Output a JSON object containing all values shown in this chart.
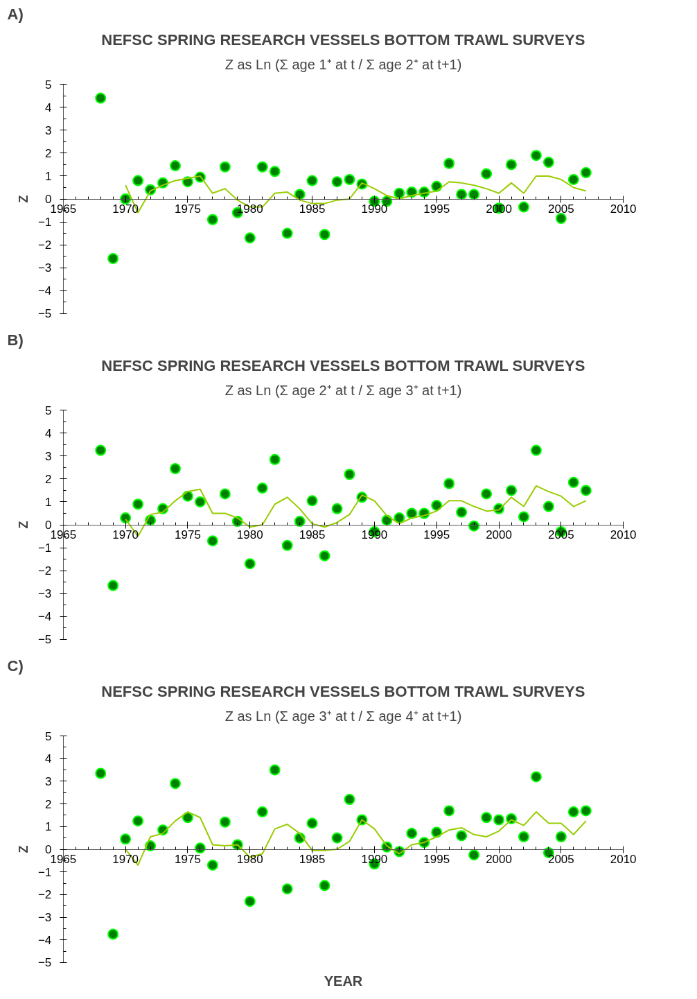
{
  "chart_data": [
    {
      "type": "scatter",
      "title": "NEFSC SPRING RESEARCH VESSELS BOTTOM TRAWL SURVEYS",
      "subtitle": "Z as Ln (Σ age 1⁺ at t / Σ age 2⁺ at t+1)",
      "ylabel": "Z",
      "annotations": [
        "A)"
      ],
      "xlim": [
        1965,
        2010
      ],
      "xticks": [
        1965,
        1970,
        1975,
        1980,
        1985,
        1990,
        1995,
        2000,
        2005,
        2010
      ],
      "ylim": [
        -5,
        5
      ],
      "yticks": [
        -5,
        -4,
        -3,
        -2,
        -1,
        0,
        1,
        2,
        3,
        4,
        5
      ],
      "grid": false,
      "marker": "circle",
      "series": [
        {
          "color": "#008000",
          "x": [
            1968,
            1969,
            1970,
            1971,
            1972,
            1973,
            1974,
            1975,
            1976,
            1977,
            1978,
            1979,
            1980,
            1981,
            1982,
            1983,
            1984,
            1985,
            1986,
            1987,
            1988,
            1989,
            1990,
            1991,
            1992,
            1993,
            1994,
            1995,
            1996,
            1997,
            1998,
            1999,
            2000,
            2001,
            2002,
            2003,
            2004,
            2005,
            2006,
            2007
          ],
          "values": [
            4.4,
            -2.6,
            0.0,
            0.8,
            0.4,
            0.7,
            1.45,
            0.75,
            0.95,
            -0.9,
            1.4,
            -0.6,
            -1.7,
            1.4,
            1.2,
            -1.5,
            0.2,
            0.8,
            -1.55,
            0.75,
            0.85,
            0.65,
            -0.1,
            -0.1,
            0.25,
            0.3,
            0.3,
            0.55,
            1.55,
            0.2,
            0.2,
            1.1,
            -0.4,
            1.5,
            -0.35,
            1.9,
            1.6,
            -0.85,
            0.85,
            1.15
          ]
        },
        {
          "type": "line",
          "marker": "none",
          "color": "#99cc00",
          "x": [
            1970,
            1971,
            1972,
            1973,
            1974,
            1975,
            1976,
            1977,
            1978,
            1979,
            1980,
            1981,
            1982,
            1983,
            1984,
            1985,
            1986,
            1987,
            1988,
            1989,
            1990,
            1991,
            1992,
            1993,
            1994,
            1995,
            1996,
            1997,
            1998,
            1999,
            2000,
            2001,
            2002,
            2003,
            2004,
            2005,
            2006,
            2007
          ],
          "values": [
            0.6,
            -0.6,
            0.35,
            0.6,
            0.8,
            0.9,
            1.0,
            0.25,
            0.45,
            -0.05,
            -0.35,
            -0.35,
            0.25,
            0.3,
            -0.05,
            -0.2,
            -0.2,
            -0.05,
            0.0,
            0.7,
            0.45,
            0.15,
            0.0,
            0.15,
            0.25,
            0.35,
            0.75,
            0.7,
            0.6,
            0.45,
            0.25,
            0.7,
            0.25,
            1.0,
            1.0,
            0.85,
            0.5,
            0.35
          ]
        }
      ]
    },
    {
      "type": "scatter",
      "title": "NEFSC SPRING RESEARCH VESSELS BOTTOM TRAWL SURVEYS",
      "subtitle": "Z as Ln (Σ age 2⁺ at t / Σ age 3⁺ at t+1)",
      "ylabel": "Z",
      "annotations": [
        "B)"
      ],
      "xlim": [
        1965,
        2010
      ],
      "xticks": [
        1965,
        1970,
        1975,
        1980,
        1985,
        1990,
        1995,
        2000,
        2005,
        2010
      ],
      "ylim": [
        -5,
        5
      ],
      "yticks": [
        -5,
        -4,
        -3,
        -2,
        -1,
        0,
        1,
        2,
        3,
        4,
        5
      ],
      "grid": false,
      "marker": "circle",
      "series": [
        {
          "color": "#008000",
          "x": [
            1968,
            1969,
            1970,
            1971,
            1972,
            1973,
            1974,
            1975,
            1976,
            1977,
            1978,
            1979,
            1980,
            1981,
            1982,
            1983,
            1984,
            1985,
            1986,
            1987,
            1988,
            1989,
            1990,
            1991,
            1992,
            1993,
            1994,
            1995,
            1996,
            1997,
            1998,
            1999,
            2000,
            2001,
            2002,
            2003,
            2004,
            2005,
            2006,
            2007
          ],
          "values": [
            3.25,
            -2.65,
            0.3,
            0.9,
            0.2,
            0.7,
            2.45,
            1.25,
            1.0,
            -0.7,
            1.35,
            0.15,
            -1.7,
            1.6,
            2.85,
            -0.9,
            0.15,
            1.05,
            -1.35,
            0.7,
            2.2,
            1.2,
            -0.3,
            0.2,
            0.3,
            0.5,
            0.5,
            0.85,
            1.8,
            0.55,
            -0.05,
            1.35,
            0.7,
            1.5,
            0.35,
            3.25,
            0.8,
            -0.3,
            1.85,
            1.5
          ]
        },
        {
          "type": "line",
          "marker": "none",
          "color": "#99cc00",
          "x": [
            1970,
            1971,
            1972,
            1973,
            1974,
            1975,
            1976,
            1977,
            1978,
            1979,
            1980,
            1981,
            1982,
            1983,
            1984,
            1985,
            1986,
            1987,
            1988,
            1989,
            1990,
            1991,
            1992,
            1993,
            1994,
            1995,
            1996,
            1997,
            1998,
            1999,
            2000,
            2001,
            2002,
            2003,
            2004,
            2005,
            2006,
            2007
          ],
          "values": [
            0.25,
            -0.5,
            0.45,
            0.55,
            1.05,
            1.45,
            1.55,
            0.5,
            0.5,
            0.3,
            -0.1,
            0.0,
            0.9,
            1.2,
            0.7,
            0.05,
            -0.1,
            0.1,
            0.45,
            1.3,
            1.05,
            0.4,
            0.05,
            0.3,
            0.4,
            0.6,
            1.05,
            1.05,
            0.8,
            0.6,
            0.65,
            1.2,
            0.8,
            1.7,
            1.45,
            1.25,
            0.8,
            1.05
          ]
        }
      ]
    },
    {
      "type": "scatter",
      "title": "NEFSC SPRING RESEARCH VESSELS BOTTOM TRAWL SURVEYS",
      "subtitle": "Z as Ln (Σ age 3⁺ at t / Σ age 4⁺ at t+1)",
      "xlabel": "YEAR",
      "ylabel": "Z",
      "annotations": [
        "C)"
      ],
      "xlim": [
        1965,
        2010
      ],
      "xticks": [
        1965,
        1970,
        1975,
        1980,
        1985,
        1990,
        1995,
        2000,
        2005,
        2010
      ],
      "ylim": [
        -5,
        5
      ],
      "yticks": [
        -5,
        -4,
        -3,
        -2,
        -1,
        0,
        1,
        2,
        3,
        4,
        5
      ],
      "grid": false,
      "marker": "circle",
      "series": [
        {
          "color": "#008000",
          "x": [
            1968,
            1969,
            1970,
            1971,
            1972,
            1973,
            1974,
            1975,
            1976,
            1977,
            1978,
            1979,
            1980,
            1981,
            1982,
            1983,
            1984,
            1985,
            1986,
            1987,
            1988,
            1989,
            1990,
            1991,
            1992,
            1993,
            1994,
            1995,
            1996,
            1997,
            1998,
            1999,
            2000,
            2001,
            2002,
            2003,
            2004,
            2005,
            2006,
            2007
          ],
          "values": [
            3.35,
            -3.75,
            0.45,
            1.25,
            0.15,
            0.85,
            2.9,
            1.4,
            0.05,
            -0.7,
            1.2,
            0.2,
            -2.3,
            1.65,
            3.5,
            -1.75,
            0.5,
            1.15,
            -1.6,
            0.5,
            2.2,
            1.3,
            -0.65,
            0.1,
            -0.1,
            0.7,
            0.3,
            0.75,
            1.7,
            0.6,
            -0.25,
            1.4,
            1.3,
            1.35,
            0.55,
            3.2,
            -0.15,
            0.55,
            1.65,
            1.7
          ]
        },
        {
          "type": "line",
          "marker": "none",
          "color": "#99cc00",
          "x": [
            1970,
            1971,
            1972,
            1973,
            1974,
            1975,
            1976,
            1977,
            1978,
            1979,
            1980,
            1981,
            1982,
            1983,
            1984,
            1985,
            1986,
            1987,
            1988,
            1989,
            1990,
            1991,
            1992,
            1993,
            1994,
            1995,
            1996,
            1997,
            1998,
            1999,
            2000,
            2001,
            2002,
            2003,
            2004,
            2005,
            2006,
            2007
          ],
          "values": [
            0.0,
            -0.7,
            0.55,
            0.7,
            1.25,
            1.65,
            1.4,
            0.2,
            0.15,
            0.2,
            -0.35,
            -0.2,
            0.9,
            1.1,
            0.7,
            -0.05,
            -0.05,
            0.0,
            0.35,
            1.3,
            0.9,
            0.15,
            -0.2,
            0.2,
            0.3,
            0.55,
            0.85,
            0.95,
            0.65,
            0.55,
            0.8,
            1.3,
            1.05,
            1.65,
            1.15,
            1.15,
            0.65,
            1.25
          ]
        }
      ]
    }
  ]
}
